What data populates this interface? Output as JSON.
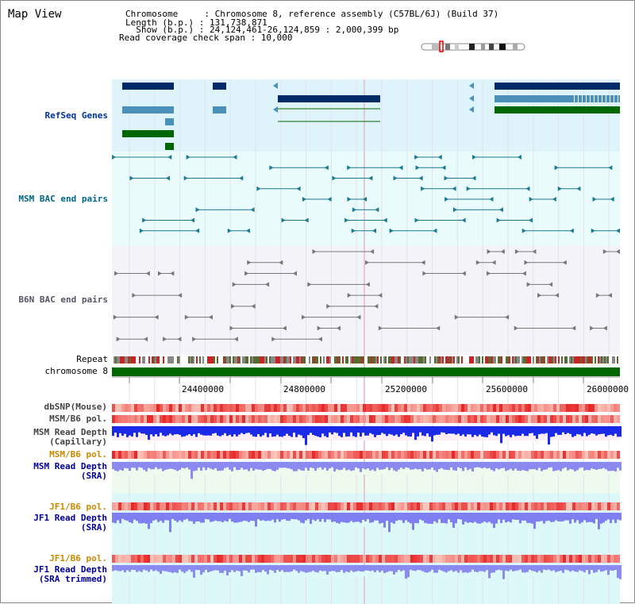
{
  "header": {
    "title": "Map View",
    "chromosome_line": "Chromosome     : Chromosome 8, reference assembly (C57BL/6J) (Build 37)",
    "length_line": "Length (b.p.) : 131,738,871",
    "show_line": "  Show (b.p.) : 24,124,461-26,124,859 : 2,000,399 bp",
    "coverage_line": "Read coverage check span : 10,000"
  },
  "tracks": {
    "refseq": "RefSeq Genes",
    "msm_bac": "MSM BAC end pairs",
    "b6n_bac": "B6N BAC end pairs",
    "repeat": "Repeat",
    "chromosome": "chromosome 8",
    "dbsnp": "dbSNP(Mouse)",
    "msm_b6_pol": "MSM/B6 pol.",
    "msm_depth_cap_1": "MSM Read Depth",
    "msm_depth_cap_2": "(Capillary)",
    "msm_b6_pol2": "MSM/B6 pol.",
    "msm_depth_sra_1": "MSM Read Depth",
    "msm_depth_sra_2": "(SRA)",
    "jf1_b6_pol": "JF1/B6 pol.",
    "jf1_depth_sra_1": "JF1 Read Depth",
    "jf1_depth_sra_2": "(SRA)",
    "jf1_b6_pol2": "JF1/B6 pol.",
    "jf1_depth_trim_1": "JF1 Read Depth",
    "jf1_depth_trim_2": "(SRA trimmed)"
  },
  "axis": {
    "ticks": [
      "24400000",
      "24800000",
      "25200000",
      "25600000",
      "26000000"
    ]
  },
  "colors": {
    "refseq_label": "#003399",
    "bac_label": "#006688",
    "pol_label": "#cc8800",
    "depth_label": "#000099",
    "chromosome_bar": "#006600"
  }
}
